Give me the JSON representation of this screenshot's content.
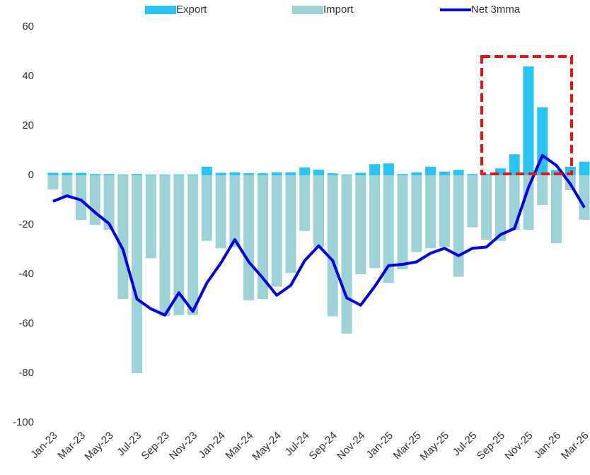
{
  "chart_data": {
    "type": "bar",
    "categories": [
      "Jan-23",
      null,
      "Mar-23",
      null,
      "May-23",
      null,
      "Jul-23",
      null,
      "Sep-23",
      null,
      "Nov-23",
      null,
      "Jan-24",
      null,
      "Mar-24",
      null,
      "May-24",
      null,
      "Jul-24",
      null,
      "Sep-24",
      null,
      "Nov-24",
      null,
      "Jan-25",
      null,
      "Mar-25",
      null,
      "May-25",
      null,
      "Jul-25",
      null,
      "Sep-25",
      null,
      "Nov-25",
      null,
      "Jan-26",
      null,
      "Mar-26"
    ],
    "series": [
      {
        "name": "Export",
        "color": "#29c3f4",
        "type": "bar",
        "values": [
          1,
          1,
          1,
          0.5,
          0.5,
          0.3,
          0.5,
          0.3,
          0.3,
          0.3,
          0.3,
          3.5,
          1,
          1.2,
          0.8,
          0.8,
          1.2,
          1.2,
          3.2,
          2.3,
          0.8,
          0.3,
          1,
          4.5,
          4.8,
          0.5,
          1.2,
          3.5,
          1.5,
          2.2,
          0.5,
          0.5,
          2.8,
          8.5,
          44,
          27.5,
          2,
          3.5,
          5.5
        ]
      },
      {
        "name": "Import",
        "color": "#9dd3d6",
        "type": "bar",
        "values": [
          -5.7,
          -9,
          -18,
          -20,
          -22,
          -50,
          -80,
          -33.5,
          -57,
          -56.5,
          -56.5,
          -26.5,
          -29.5,
          -29,
          -50.5,
          -50,
          -45,
          -39.5,
          -22.5,
          -29,
          -57,
          -64,
          -40,
          -37.5,
          -43.5,
          -38,
          -31,
          -29.5,
          -29,
          -41,
          -21,
          -26,
          -26.5,
          -22,
          -22,
          -12,
          -27.5,
          -6,
          -18
        ]
      },
      {
        "name": "Net 3mma",
        "color": "#0000e0",
        "type": "line",
        "values": [
          -10.5,
          -8.3,
          -10,
          -15,
          -19.5,
          -30,
          -50,
          -54,
          -56.5,
          -47.5,
          -55,
          -43.5,
          -35.5,
          -26,
          -35,
          -41.5,
          -48.5,
          -44.5,
          -34.5,
          -28.5,
          -34.5,
          -49.5,
          -52.5,
          -45,
          -36.5,
          -36,
          -35,
          -31.5,
          -29.5,
          -32.5,
          -29.5,
          -29,
          -24,
          -21.5,
          -5,
          8,
          4,
          -3.5,
          -13
        ]
      }
    ],
    "ylim": [
      -100,
      60
    ],
    "yticks": [
      -100,
      -80,
      -60,
      -40,
      -20,
      0,
      20,
      40,
      60
    ],
    "grid": false,
    "legend": "top"
  }
}
